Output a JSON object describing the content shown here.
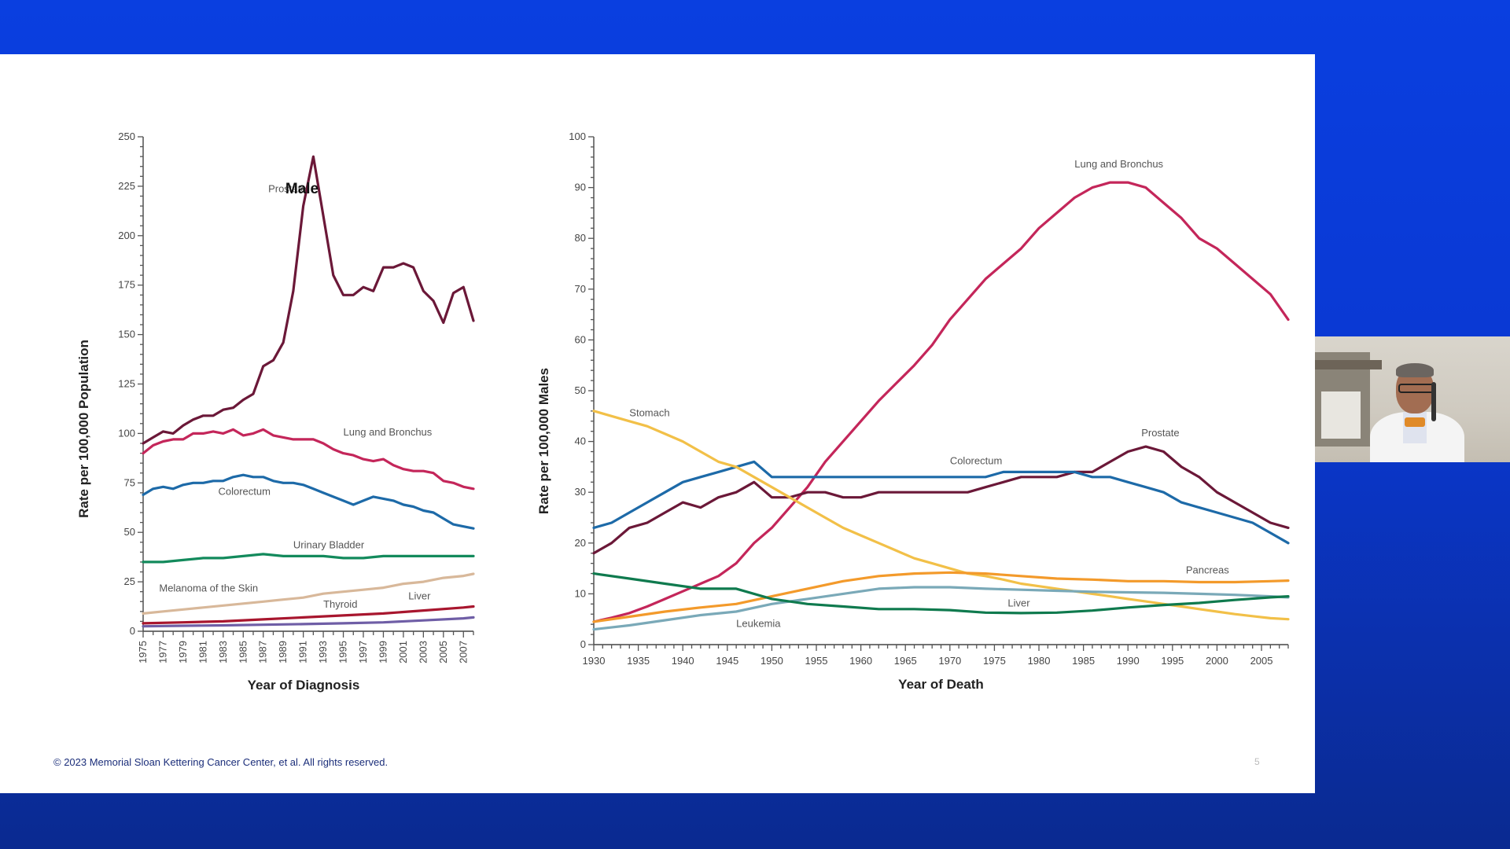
{
  "footer": {
    "copyright": "© 2023 Memorial Sloan Kettering Cancer Center, et al. All rights reserved.",
    "page_number": "5"
  },
  "chart_data": [
    {
      "type": "line",
      "title": "Male",
      "xlabel": "Year of Diagnosis",
      "ylabel": "Rate per 100,000 Population",
      "xlim": [
        1975,
        2008
      ],
      "ylim": [
        0,
        250
      ],
      "yticks": [
        0,
        25,
        50,
        75,
        100,
        125,
        150,
        175,
        200,
        225,
        250
      ],
      "xticks": [
        1975,
        1977,
        1979,
        1981,
        1983,
        1985,
        1987,
        1989,
        1991,
        1993,
        1995,
        1997,
        1999,
        2001,
        2003,
        2005,
        2007
      ],
      "series": [
        {
          "name": "Prostate",
          "color": "#6b1838",
          "label_at": [
            1987.5,
            222
          ],
          "x": [
            1975,
            1976,
            1977,
            1978,
            1979,
            1980,
            1981,
            1982,
            1983,
            1984,
            1985,
            1986,
            1987,
            1988,
            1989,
            1990,
            1991,
            1992,
            1993,
            1994,
            1995,
            1996,
            1997,
            1998,
            1999,
            2000,
            2001,
            2002,
            2003,
            2004,
            2005,
            2006,
            2007,
            2008
          ],
          "values": [
            95,
            98,
            101,
            100,
            104,
            107,
            109,
            109,
            112,
            113,
            117,
            120,
            134,
            137,
            146,
            172,
            215,
            240,
            210,
            180,
            170,
            170,
            174,
            172,
            184,
            184,
            186,
            184,
            172,
            167,
            156,
            171,
            174,
            157
          ]
        },
        {
          "name": "Lung and Bronchus",
          "color": "#c4265a",
          "label_at": [
            1995,
            99
          ],
          "x": [
            1975,
            1976,
            1977,
            1978,
            1979,
            1980,
            1981,
            1982,
            1983,
            1984,
            1985,
            1986,
            1987,
            1988,
            1989,
            1990,
            1991,
            1992,
            1993,
            1994,
            1995,
            1996,
            1997,
            1998,
            1999,
            2000,
            2001,
            2002,
            2003,
            2004,
            2005,
            2006,
            2007,
            2008
          ],
          "values": [
            90,
            94,
            96,
            97,
            97,
            100,
            100,
            101,
            100,
            102,
            99,
            100,
            102,
            99,
            98,
            97,
            97,
            97,
            95,
            92,
            90,
            89,
            87,
            86,
            87,
            84,
            82,
            81,
            81,
            80,
            76,
            75,
            73,
            72
          ]
        },
        {
          "name": "Colorectum",
          "color": "#1d6aa8",
          "label_at": [
            1982.5,
            69
          ],
          "x": [
            1975,
            1976,
            1977,
            1978,
            1979,
            1980,
            1981,
            1982,
            1983,
            1984,
            1985,
            1986,
            1987,
            1988,
            1989,
            1990,
            1991,
            1992,
            1993,
            1994,
            1995,
            1996,
            1997,
            1998,
            1999,
            2000,
            2001,
            2002,
            2003,
            2004,
            2005,
            2006,
            2007,
            2008
          ],
          "values": [
            69,
            72,
            73,
            72,
            74,
            75,
            75,
            76,
            76,
            78,
            79,
            78,
            78,
            76,
            75,
            75,
            74,
            72,
            70,
            68,
            66,
            64,
            66,
            68,
            67,
            66,
            64,
            63,
            61,
            60,
            57,
            54,
            53,
            52
          ]
        },
        {
          "name": "Urinary Bladder",
          "color": "#138a5c",
          "label_at": [
            1990,
            42
          ],
          "x": [
            1975,
            1977,
            1979,
            1981,
            1983,
            1985,
            1987,
            1989,
            1991,
            1993,
            1995,
            1997,
            1999,
            2001,
            2003,
            2005,
            2007,
            2008
          ],
          "values": [
            35,
            35,
            36,
            37,
            37,
            38,
            39,
            38,
            38,
            38,
            37,
            37,
            38,
            38,
            38,
            38,
            38,
            38
          ]
        },
        {
          "name": "Melanoma of the Skin",
          "color": "#d8b89a",
          "label_at": [
            1976.6,
            20
          ],
          "x": [
            1975,
            1977,
            1979,
            1981,
            1983,
            1985,
            1987,
            1989,
            1991,
            1993,
            1995,
            1997,
            1999,
            2001,
            2003,
            2005,
            2007,
            2008
          ],
          "values": [
            9,
            10,
            11,
            12,
            13,
            14,
            15,
            16,
            17,
            19,
            20,
            21,
            22,
            24,
            25,
            27,
            28,
            29
          ]
        },
        {
          "name": "Thyroid",
          "color": "#6f5ea6",
          "label_at": [
            1993,
            12
          ],
          "x": [
            1975,
            1979,
            1983,
            1987,
            1991,
            1995,
            1999,
            2003,
            2007,
            2008
          ],
          "values": [
            2.5,
            2.8,
            3,
            3.3,
            3.6,
            4,
            4.5,
            5.5,
            6.5,
            7
          ]
        },
        {
          "name": "Liver",
          "color": "#a8162e",
          "label_at": [
            2001.5,
            16
          ],
          "x": [
            1975,
            1979,
            1983,
            1987,
            1991,
            1995,
            1999,
            2003,
            2007,
            2008
          ],
          "values": [
            4,
            4.5,
            5,
            6,
            7,
            8,
            9,
            10.5,
            12,
            12.5
          ]
        }
      ]
    },
    {
      "type": "line",
      "xlabel": "Year of Death",
      "ylabel": "Rate per 100,000 Males",
      "xlim": [
        1930,
        2008
      ],
      "ylim": [
        0,
        100
      ],
      "yticks": [
        0,
        10,
        20,
        30,
        40,
        50,
        60,
        70,
        80,
        90,
        100
      ],
      "xticks": [
        1930,
        1935,
        1940,
        1945,
        1950,
        1955,
        1960,
        1965,
        1970,
        1975,
        1980,
        1985,
        1990,
        1995,
        2000,
        2005
      ],
      "series": [
        {
          "name": "Lung and Bronchus",
          "color": "#c4265a",
          "label_at": [
            1984,
            94
          ],
          "x": [
            1930,
            1932,
            1934,
            1936,
            1938,
            1940,
            1942,
            1944,
            1946,
            1948,
            1950,
            1952,
            1954,
            1956,
            1958,
            1960,
            1962,
            1964,
            1966,
            1968,
            1970,
            1972,
            1974,
            1976,
            1978,
            1980,
            1982,
            1984,
            1986,
            1988,
            1990,
            1992,
            1994,
            1996,
            1998,
            2000,
            2002,
            2004,
            2006,
            2008
          ],
          "values": [
            4.5,
            5.3,
            6.2,
            7.5,
            9,
            10.5,
            12,
            13.5,
            16,
            20,
            23,
            27,
            31,
            36,
            40,
            44,
            48,
            51.5,
            55,
            59,
            64,
            68,
            72,
            75,
            78,
            82,
            85,
            88,
            90,
            91,
            91,
            90,
            87,
            84,
            80,
            78,
            75,
            72,
            69,
            64
          ]
        },
        {
          "name": "Prostate",
          "color": "#6b1838",
          "label_at": [
            1991.5,
            41
          ],
          "x": [
            1930,
            1932,
            1934,
            1936,
            1938,
            1940,
            1942,
            1944,
            1946,
            1948,
            1950,
            1952,
            1954,
            1956,
            1958,
            1960,
            1962,
            1964,
            1966,
            1968,
            1970,
            1972,
            1974,
            1976,
            1978,
            1980,
            1982,
            1984,
            1986,
            1988,
            1990,
            1992,
            1994,
            1996,
            1998,
            2000,
            2002,
            2004,
            2006,
            2008
          ],
          "values": [
            18,
            20,
            23,
            24,
            26,
            28,
            27,
            29,
            30,
            32,
            29,
            29,
            30,
            30,
            29,
            29,
            30,
            30,
            30,
            30,
            30,
            30,
            31,
            32,
            33,
            33,
            33,
            34,
            34,
            36,
            38,
            39,
            38,
            35,
            33,
            30,
            28,
            26,
            24,
            23
          ]
        },
        {
          "name": "Colorectum",
          "color": "#1d6aa8",
          "label_at": [
            1970,
            35.5
          ],
          "x": [
            1930,
            1932,
            1934,
            1936,
            1938,
            1940,
            1942,
            1944,
            1946,
            1948,
            1950,
            1952,
            1954,
            1956,
            1958,
            1960,
            1962,
            1964,
            1966,
            1968,
            1970,
            1972,
            1974,
            1976,
            1978,
            1980,
            1982,
            1984,
            1986,
            1988,
            1990,
            1992,
            1994,
            1996,
            1998,
            2000,
            2002,
            2004,
            2006,
            2008
          ],
          "values": [
            23,
            24,
            26,
            28,
            30,
            32,
            33,
            34,
            35,
            36,
            33,
            33,
            33,
            33,
            33,
            33,
            33,
            33,
            33,
            33,
            33,
            33,
            33,
            34,
            34,
            34,
            34,
            34,
            33,
            33,
            32,
            31,
            30,
            28,
            27,
            26,
            25,
            24,
            22,
            20
          ]
        },
        {
          "name": "Stomach",
          "color": "#f2c048",
          "label_at": [
            1934,
            45
          ],
          "x": [
            1930,
            1932,
            1934,
            1936,
            1938,
            1940,
            1942,
            1944,
            1946,
            1948,
            1950,
            1952,
            1954,
            1956,
            1958,
            1960,
            1962,
            1964,
            1966,
            1968,
            1970,
            1972,
            1974,
            1976,
            1978,
            1980,
            1982,
            1984,
            1986,
            1988,
            1990,
            1992,
            1994,
            1996,
            1998,
            2000,
            2002,
            2004,
            2006,
            2008
          ],
          "values": [
            46,
            45,
            44,
            43,
            41.5,
            40,
            38,
            36,
            35,
            33,
            31,
            29,
            27,
            25,
            23,
            21.5,
            20,
            18.5,
            17,
            16,
            15,
            14,
            13.5,
            12.8,
            12,
            11.5,
            11,
            10.5,
            10,
            9.5,
            9,
            8.5,
            8,
            7.5,
            7,
            6.5,
            6,
            5.6,
            5.2,
            5
          ]
        },
        {
          "name": "Pancreas",
          "color": "#f39a2b",
          "label_at": [
            1996.5,
            14
          ],
          "x": [
            1930,
            1934,
            1938,
            1942,
            1946,
            1950,
            1954,
            1958,
            1962,
            1966,
            1970,
            1974,
            1978,
            1982,
            1986,
            1990,
            1994,
            1998,
            2002,
            2006,
            2008
          ],
          "values": [
            4.5,
            5.5,
            6.5,
            7.3,
            8,
            9.5,
            11,
            12.5,
            13.5,
            14,
            14.2,
            14,
            13.5,
            13,
            12.8,
            12.5,
            12.5,
            12.3,
            12.3,
            12.5,
            12.6
          ]
        },
        {
          "name": "Leukemia",
          "color": "#7aa9b8",
          "label_at": [
            1946,
            3.5
          ],
          "x": [
            1930,
            1934,
            1938,
            1942,
            1946,
            1950,
            1954,
            1958,
            1962,
            1966,
            1970,
            1974,
            1978,
            1982,
            1986,
            1990,
            1994,
            1998,
            2002,
            2006,
            2008
          ],
          "values": [
            3,
            3.8,
            4.8,
            5.8,
            6.5,
            8,
            9,
            10,
            11,
            11.3,
            11.3,
            11,
            10.8,
            10.6,
            10.4,
            10.3,
            10.2,
            10,
            9.8,
            9.5,
            9.3
          ]
        },
        {
          "name": "Liver",
          "color": "#0f7a4e",
          "label_at": [
            1976.5,
            7.5
          ],
          "x": [
            1930,
            1934,
            1938,
            1942,
            1946,
            1950,
            1954,
            1958,
            1962,
            1966,
            1970,
            1974,
            1978,
            1982,
            1986,
            1990,
            1994,
            1998,
            2002,
            2006,
            2008
          ],
          "values": [
            14,
            13,
            12,
            11,
            11,
            9,
            8,
            7.5,
            7,
            7,
            6.8,
            6.3,
            6.2,
            6.3,
            6.7,
            7.3,
            7.8,
            8.2,
            8.8,
            9.3,
            9.5
          ]
        }
      ]
    }
  ]
}
